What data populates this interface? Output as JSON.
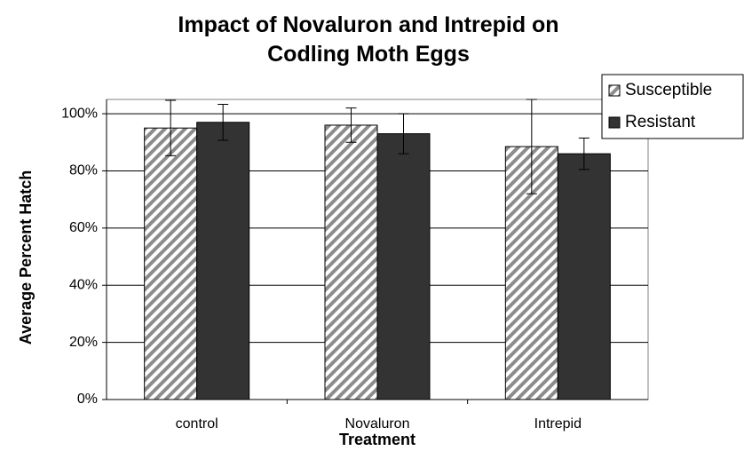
{
  "chart_data": {
    "type": "bar",
    "title": "Impact of Novaluron and Intrepid on Codling Moth Eggs",
    "x_label": "Treatment",
    "y_label": "Average Percent Hatch",
    "categories": [
      "control",
      "Novaluron",
      "Intrepid"
    ],
    "series": [
      {
        "name": "Susceptible",
        "color": "#8c8c8c",
        "hatch": true,
        "values": [
          95,
          96,
          88.5
        ],
        "errors": [
          9.7,
          6,
          16.5
        ]
      },
      {
        "name": "Resistant",
        "color": "#333333",
        "hatch": false,
        "values": [
          97,
          93,
          86
        ],
        "errors": [
          6.3,
          7,
          5.5
        ]
      }
    ],
    "ylim": [
      0,
      105
    ],
    "yticks": [
      {
        "value": 0,
        "label": "0%"
      },
      {
        "value": 20,
        "label": "20%"
      },
      {
        "value": 40,
        "label": "40%"
      },
      {
        "value": 60,
        "label": "60%"
      },
      {
        "value": 80,
        "label": "80%"
      },
      {
        "value": 100,
        "label": "100%"
      }
    ],
    "grid": true,
    "legend": "top-right"
  }
}
